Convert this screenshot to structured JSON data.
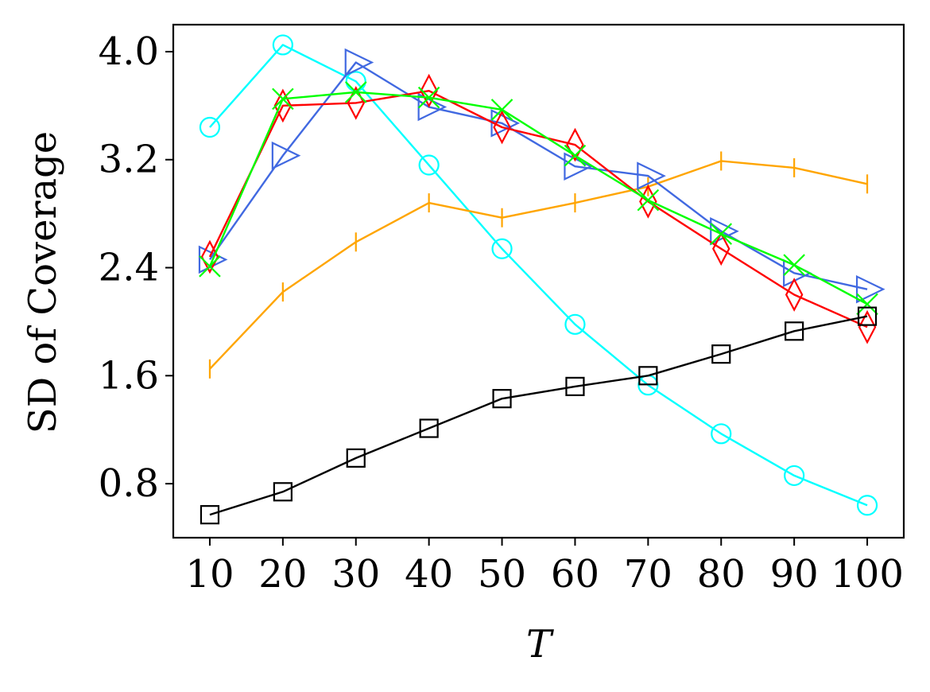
{
  "chart_data": {
    "type": "line",
    "title": "",
    "xlabel": "T",
    "ylabel": "SD of Coverage",
    "xlim": [
      5,
      105
    ],
    "ylim": [
      0.4,
      4.2
    ],
    "x": [
      10,
      20,
      30,
      40,
      50,
      60,
      70,
      80,
      90,
      100
    ],
    "x_ticks": [
      10,
      20,
      30,
      40,
      50,
      60,
      70,
      80,
      90,
      100
    ],
    "x_tick_labels": [
      "10",
      "20",
      "30",
      "40",
      "50",
      "60",
      "70",
      "80",
      "90",
      "100"
    ],
    "y_ticks": [
      0.8,
      1.6,
      2.4,
      3.2,
      4.0
    ],
    "y_tick_labels": [
      "0.8",
      "1.6",
      "2.4",
      "3.2",
      "4.0"
    ],
    "grid": false,
    "legend": false,
    "series": [
      {
        "color": "#00ffff",
        "marker": "circle",
        "values": [
          3.44,
          4.05,
          3.78,
          3.16,
          2.54,
          1.98,
          1.53,
          1.17,
          0.86,
          0.64
        ]
      },
      {
        "color": "#ffa500",
        "marker": "vline",
        "values": [
          1.65,
          2.22,
          2.59,
          2.88,
          2.77,
          2.88,
          3.0,
          3.19,
          3.14,
          3.02
        ]
      },
      {
        "color": "#4169e1",
        "marker": "triangle-right",
        "values": [
          2.46,
          3.23,
          3.92,
          3.59,
          3.47,
          3.15,
          3.08,
          2.67,
          2.36,
          2.24
        ]
      },
      {
        "color": "#ff0000",
        "marker": "diamond",
        "values": [
          2.48,
          3.6,
          3.62,
          3.71,
          3.44,
          3.31,
          2.89,
          2.54,
          2.2,
          1.96
        ]
      },
      {
        "color": "#00ff00",
        "marker": "x",
        "values": [
          2.41,
          3.65,
          3.7,
          3.66,
          3.57,
          3.23,
          2.9,
          2.65,
          2.42,
          2.13
        ]
      },
      {
        "color": "#000000",
        "marker": "square",
        "values": [
          0.57,
          0.74,
          0.99,
          1.21,
          1.43,
          1.52,
          1.6,
          1.76,
          1.93,
          2.04
        ]
      }
    ]
  }
}
